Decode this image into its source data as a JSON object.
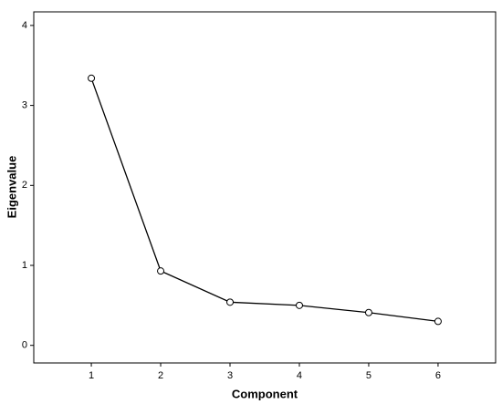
{
  "chart_data": {
    "type": "line",
    "x_label": "Component",
    "y_label": "Eigenvalue",
    "x": [
      1,
      2,
      3,
      4,
      5,
      6
    ],
    "values": [
      3.34,
      0.93,
      0.54,
      0.5,
      0.41,
      0.3
    ],
    "color": "#000000",
    "xlim": [
      0.17,
      6.83
    ],
    "xticks": [
      1,
      2,
      3,
      4,
      5,
      6
    ],
    "ylim": [
      -0.22,
      4.17
    ],
    "yticks": [
      0,
      1,
      2,
      3,
      4
    ],
    "grid": false,
    "markers": "open-circle"
  }
}
